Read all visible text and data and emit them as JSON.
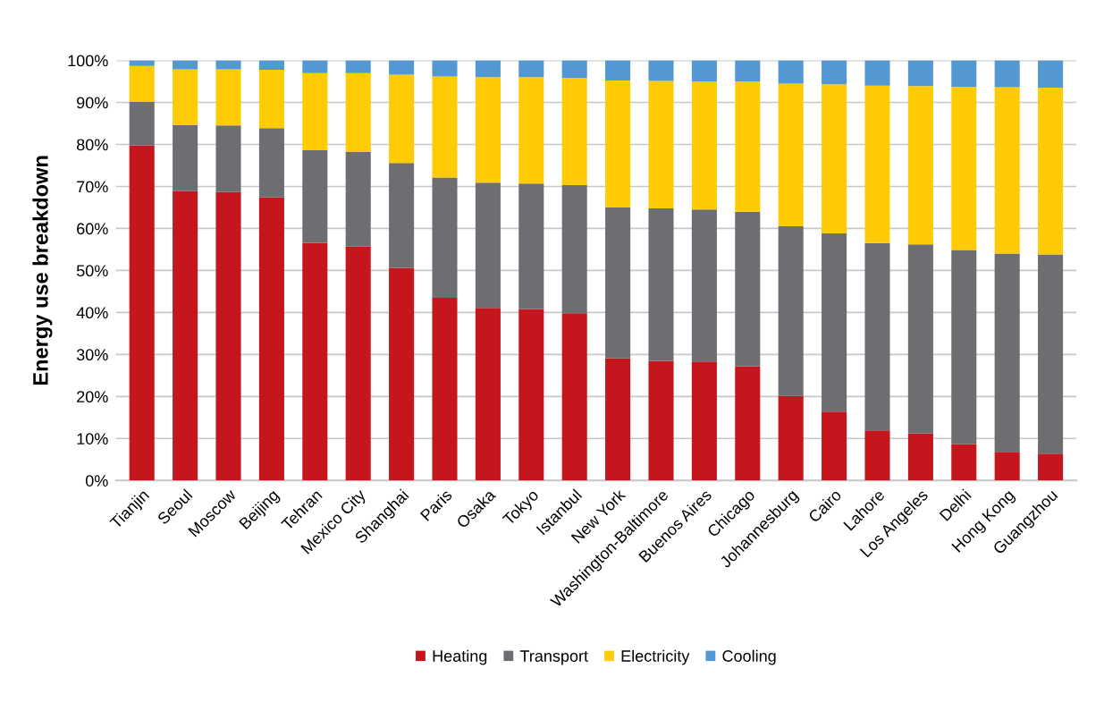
{
  "chart_data": {
    "type": "bar",
    "stacked": true,
    "ylabel": "Energy use breakdown",
    "categories": [
      "Tianjin",
      "Seoul",
      "Moscow",
      "Beijing",
      "Tehran",
      "Mexico City",
      "Shanghai",
      "Paris",
      "Osaka",
      "Tokyo",
      "Istanbul",
      "New York",
      "Washington-Baltimore",
      "Buenos Aires",
      "Chicago",
      "Johannesburg",
      "Cairo",
      "Lahore",
      "Los Angeles",
      "Delhi",
      "Hong Kong",
      "Guangzhou"
    ],
    "series": [
      {
        "name": "Heating",
        "color": "#c4161c",
        "values": [
          79.8,
          68.9,
          68.7,
          67.4,
          56.6,
          55.7,
          50.6,
          43.5,
          41.1,
          40.8,
          39.8,
          29.1,
          28.5,
          28.3,
          27.2,
          20.1,
          16.4,
          11.9,
          11.2,
          8.7,
          6.8,
          6.4
        ]
      },
      {
        "name": "Transport",
        "color": "#6d6e71",
        "values": [
          10.3,
          15.7,
          15.8,
          16.5,
          22.0,
          22.5,
          25.0,
          28.6,
          29.8,
          29.9,
          30.5,
          35.9,
          36.3,
          36.2,
          36.8,
          40.4,
          42.4,
          44.6,
          45.0,
          46.2,
          47.2,
          47.4
        ]
      },
      {
        "name": "Electricity",
        "color": "#ffcb05",
        "values": [
          8.6,
          13.3,
          13.4,
          13.9,
          18.4,
          18.8,
          21.0,
          24.1,
          25.1,
          25.3,
          25.5,
          30.2,
          30.3,
          30.5,
          31.0,
          34.0,
          35.5,
          37.5,
          37.7,
          38.8,
          39.6,
          39.7
        ]
      },
      {
        "name": "Cooling",
        "color": "#5398d3",
        "values": [
          1.3,
          2.1,
          2.1,
          2.2,
          3.0,
          3.0,
          3.4,
          3.8,
          4.0,
          4.0,
          4.2,
          4.8,
          4.9,
          5.0,
          5.0,
          5.5,
          5.7,
          6.0,
          6.1,
          6.3,
          6.4,
          6.5
        ]
      }
    ],
    "ylim": [
      0,
      100
    ],
    "yticks": [
      {
        "value": 0,
        "label": "0%"
      },
      {
        "value": 10,
        "label": "10%"
      },
      {
        "value": 20,
        "label": "20%"
      },
      {
        "value": 30,
        "label": "30%"
      },
      {
        "value": 40,
        "label": "40%"
      },
      {
        "value": 50,
        "label": "50%"
      },
      {
        "value": 60,
        "label": "60%"
      },
      {
        "value": 70,
        "label": "70%"
      },
      {
        "value": 80,
        "label": "80%"
      },
      {
        "value": 90,
        "label": "90%"
      },
      {
        "value": 100,
        "label": "100%"
      }
    ],
    "grid": "y",
    "legend": "bottom"
  }
}
